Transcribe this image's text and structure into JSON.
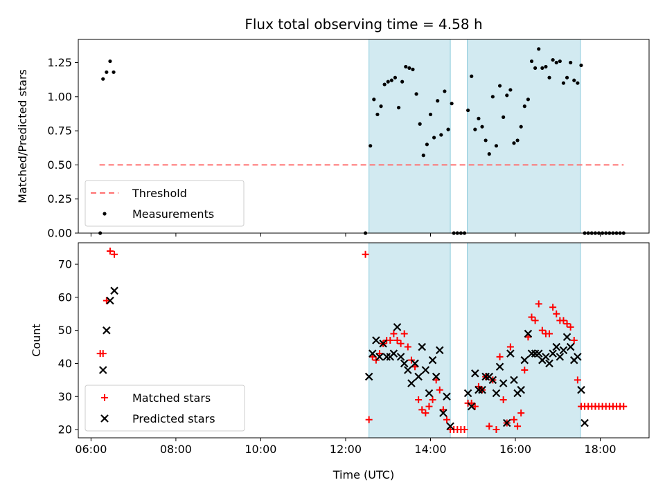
{
  "chart_data": [
    {
      "type": "scatter",
      "title": "Flux total observing time = 4.58 h",
      "ylabel": "Matched/Predicted stars",
      "xlabel": "",
      "xlim": [
        "05:42",
        "19:09"
      ],
      "ylim": [
        0,
        1.42
      ],
      "xticks": [
        "06:00",
        "08:00",
        "10:00",
        "12:00",
        "14:00",
        "16:00",
        "18:00"
      ],
      "yticks": [
        "0.00",
        "0.25",
        "0.50",
        "0.75",
        "1.00",
        "1.25"
      ],
      "shaded_spans": [
        [
          "12:33",
          "14:28"
        ],
        [
          "14:52",
          "17:32"
        ]
      ],
      "threshold": {
        "name": "Threshold",
        "y": 0.5,
        "x_start": "06:12",
        "x_end": "18:33",
        "color": "#ff7070"
      },
      "legend": {
        "placement": "lower-left",
        "entries": [
          "Threshold",
          "Measurements"
        ]
      },
      "series": [
        {
          "name": "Measurements",
          "color": "#000000",
          "points": [
            [
              "06:13",
              0.0
            ],
            [
              "06:17",
              1.13
            ],
            [
              "06:22",
              1.18
            ],
            [
              "06:27",
              1.26
            ],
            [
              "06:32",
              1.18
            ],
            [
              "12:28",
              0.0
            ],
            [
              "12:35",
              0.64
            ],
            [
              "12:40",
              0.98
            ],
            [
              "12:45",
              0.87
            ],
            [
              "12:50",
              0.93
            ],
            [
              "12:55",
              1.09
            ],
            [
              "13:00",
              1.11
            ],
            [
              "13:05",
              1.12
            ],
            [
              "13:10",
              1.14
            ],
            [
              "13:15",
              0.92
            ],
            [
              "13:20",
              1.11
            ],
            [
              "13:25",
              1.22
            ],
            [
              "13:30",
              1.21
            ],
            [
              "13:35",
              1.2
            ],
            [
              "13:40",
              1.02
            ],
            [
              "13:45",
              0.8
            ],
            [
              "13:50",
              0.57
            ],
            [
              "13:55",
              0.65
            ],
            [
              "14:00",
              0.87
            ],
            [
              "14:05",
              0.7
            ],
            [
              "14:10",
              0.97
            ],
            [
              "14:15",
              0.72
            ],
            [
              "14:20",
              1.04
            ],
            [
              "14:25",
              0.76
            ],
            [
              "14:30",
              0.95
            ],
            [
              "14:33",
              0.0
            ],
            [
              "14:38",
              0.0
            ],
            [
              "14:43",
              0.0
            ],
            [
              "14:48",
              0.0
            ],
            [
              "14:53",
              0.9
            ],
            [
              "14:58",
              1.15
            ],
            [
              "15:03",
              0.76
            ],
            [
              "15:08",
              0.84
            ],
            [
              "15:13",
              0.78
            ],
            [
              "15:18",
              0.68
            ],
            [
              "15:23",
              0.58
            ],
            [
              "15:28",
              1.0
            ],
            [
              "15:33",
              0.64
            ],
            [
              "15:38",
              1.08
            ],
            [
              "15:43",
              0.85
            ],
            [
              "15:48",
              1.01
            ],
            [
              "15:53",
              1.05
            ],
            [
              "15:58",
              0.66
            ],
            [
              "16:03",
              0.68
            ],
            [
              "16:08",
              0.78
            ],
            [
              "16:13",
              0.93
            ],
            [
              "16:18",
              0.98
            ],
            [
              "16:23",
              1.26
            ],
            [
              "16:28",
              1.21
            ],
            [
              "16:33",
              1.35
            ],
            [
              "16:38",
              1.21
            ],
            [
              "16:43",
              1.22
            ],
            [
              "16:48",
              1.14
            ],
            [
              "16:53",
              1.27
            ],
            [
              "16:58",
              1.25
            ],
            [
              "17:03",
              1.26
            ],
            [
              "17:08",
              1.1
            ],
            [
              "17:13",
              1.14
            ],
            [
              "17:18",
              1.25
            ],
            [
              "17:23",
              1.12
            ],
            [
              "17:28",
              1.1
            ],
            [
              "17:33",
              1.23
            ],
            [
              "17:38",
              0.0
            ],
            [
              "17:43",
              0.0
            ],
            [
              "17:48",
              0.0
            ],
            [
              "17:53",
              0.0
            ],
            [
              "17:58",
              0.0
            ],
            [
              "18:03",
              0.0
            ],
            [
              "18:08",
              0.0
            ],
            [
              "18:13",
              0.0
            ],
            [
              "18:18",
              0.0
            ],
            [
              "18:23",
              0.0
            ],
            [
              "18:28",
              0.0
            ],
            [
              "18:33",
              0.0
            ]
          ]
        }
      ]
    },
    {
      "type": "scatter",
      "title": "",
      "ylabel": "Count",
      "xlabel": "Time (UTC)",
      "xlim": [
        "05:42",
        "19:09"
      ],
      "ylim": [
        17.5,
        76.5
      ],
      "xticks": [
        "06:00",
        "08:00",
        "10:00",
        "12:00",
        "14:00",
        "16:00",
        "18:00"
      ],
      "yticks": [
        "20",
        "30",
        "40",
        "50",
        "60",
        "70"
      ],
      "shaded_spans": [
        [
          "12:33",
          "14:28"
        ],
        [
          "14:52",
          "17:32"
        ]
      ],
      "legend": {
        "placement": "lower-left",
        "entries": [
          "Matched stars",
          "Predicted stars"
        ]
      },
      "series": [
        {
          "name": "Matched stars",
          "marker": "plus",
          "color": "#ff0000",
          "points": [
            [
              "06:13",
              43
            ],
            [
              "06:17",
              43
            ],
            [
              "06:22",
              59
            ],
            [
              "06:27",
              74
            ],
            [
              "06:33",
              73
            ],
            [
              "12:28",
              73
            ],
            [
              "12:33",
              23
            ],
            [
              "12:38",
              42
            ],
            [
              "12:43",
              41
            ],
            [
              "12:48",
              43
            ],
            [
              "12:53",
              46
            ],
            [
              "12:58",
              47
            ],
            [
              "13:03",
              47
            ],
            [
              "13:08",
              49
            ],
            [
              "13:13",
              47
            ],
            [
              "13:18",
              46
            ],
            [
              "13:23",
              49
            ],
            [
              "13:28",
              45
            ],
            [
              "13:33",
              41
            ],
            [
              "13:38",
              39
            ],
            [
              "13:43",
              29
            ],
            [
              "13:48",
              26
            ],
            [
              "13:53",
              25
            ],
            [
              "13:58",
              27
            ],
            [
              "14:03",
              29
            ],
            [
              "14:08",
              35
            ],
            [
              "14:13",
              32
            ],
            [
              "14:18",
              26
            ],
            [
              "14:23",
              23
            ],
            [
              "14:28",
              20
            ],
            [
              "14:33",
              20
            ],
            [
              "14:38",
              20
            ],
            [
              "14:43",
              20
            ],
            [
              "14:48",
              20
            ],
            [
              "14:53",
              28
            ],
            [
              "14:58",
              28
            ],
            [
              "15:03",
              27
            ],
            [
              "15:08",
              33
            ],
            [
              "15:13",
              32
            ],
            [
              "15:18",
              36
            ],
            [
              "15:23",
              21
            ],
            [
              "15:28",
              35
            ],
            [
              "15:33",
              20
            ],
            [
              "15:38",
              42
            ],
            [
              "15:43",
              29
            ],
            [
              "15:48",
              22
            ],
            [
              "15:53",
              45
            ],
            [
              "15:58",
              23
            ],
            [
              "16:03",
              21
            ],
            [
              "16:08",
              25
            ],
            [
              "16:13",
              38
            ],
            [
              "16:18",
              48
            ],
            [
              "16:23",
              54
            ],
            [
              "16:28",
              53
            ],
            [
              "16:33",
              58
            ],
            [
              "16:38",
              50
            ],
            [
              "16:43",
              49
            ],
            [
              "16:48",
              49
            ],
            [
              "16:53",
              57
            ],
            [
              "16:58",
              55
            ],
            [
              "17:03",
              53
            ],
            [
              "17:08",
              53
            ],
            [
              "17:13",
              52
            ],
            [
              "17:18",
              51
            ],
            [
              "17:23",
              47
            ],
            [
              "17:28",
              35
            ],
            [
              "17:33",
              27
            ],
            [
              "17:38",
              27
            ],
            [
              "17:43",
              27
            ],
            [
              "17:48",
              27
            ],
            [
              "17:53",
              27
            ],
            [
              "17:58",
              27
            ],
            [
              "18:03",
              27
            ],
            [
              "18:08",
              27
            ],
            [
              "18:13",
              27
            ],
            [
              "18:18",
              27
            ],
            [
              "18:23",
              27
            ],
            [
              "18:28",
              27
            ],
            [
              "18:33",
              27
            ]
          ]
        },
        {
          "name": "Predicted stars",
          "marker": "x",
          "color": "#000000",
          "points": [
            [
              "06:17",
              38
            ],
            [
              "06:22",
              50
            ],
            [
              "06:27",
              59
            ],
            [
              "06:33",
              62
            ],
            [
              "12:33",
              36
            ],
            [
              "12:38",
              43
            ],
            [
              "12:43",
              47
            ],
            [
              "12:48",
              42
            ],
            [
              "12:53",
              46
            ],
            [
              "12:58",
              42
            ],
            [
              "13:03",
              42
            ],
            [
              "13:08",
              43
            ],
            [
              "13:13",
              51
            ],
            [
              "13:18",
              42
            ],
            [
              "13:23",
              40
            ],
            [
              "13:28",
              38
            ],
            [
              "13:33",
              34
            ],
            [
              "13:38",
              40
            ],
            [
              "13:43",
              36
            ],
            [
              "13:48",
              45
            ],
            [
              "13:53",
              38
            ],
            [
              "13:58",
              31
            ],
            [
              "14:03",
              41
            ],
            [
              "14:08",
              36
            ],
            [
              "14:13",
              44
            ],
            [
              "14:18",
              25
            ],
            [
              "14:23",
              30
            ],
            [
              "14:28",
              21
            ],
            [
              "14:53",
              31
            ],
            [
              "14:58",
              27
            ],
            [
              "15:03",
              37
            ],
            [
              "15:08",
              32
            ],
            [
              "15:13",
              32
            ],
            [
              "15:18",
              36
            ],
            [
              "15:23",
              36
            ],
            [
              "15:28",
              35
            ],
            [
              "15:33",
              31
            ],
            [
              "15:38",
              39
            ],
            [
              "15:43",
              34
            ],
            [
              "15:48",
              22
            ],
            [
              "15:53",
              43
            ],
            [
              "15:58",
              35
            ],
            [
              "16:03",
              31
            ],
            [
              "16:08",
              32
            ],
            [
              "16:13",
              41
            ],
            [
              "16:18",
              49
            ],
            [
              "16:23",
              43
            ],
            [
              "16:28",
              43
            ],
            [
              "16:33",
              43
            ],
            [
              "16:38",
              41
            ],
            [
              "16:43",
              42
            ],
            [
              "16:48",
              40
            ],
            [
              "16:53",
              43
            ],
            [
              "16:58",
              45
            ],
            [
              "17:03",
              42
            ],
            [
              "17:08",
              44
            ],
            [
              "17:13",
              48
            ],
            [
              "17:18",
              45
            ],
            [
              "17:23",
              41
            ],
            [
              "17:28",
              42
            ],
            [
              "17:33",
              32
            ],
            [
              "17:38",
              22
            ]
          ]
        }
      ]
    }
  ]
}
